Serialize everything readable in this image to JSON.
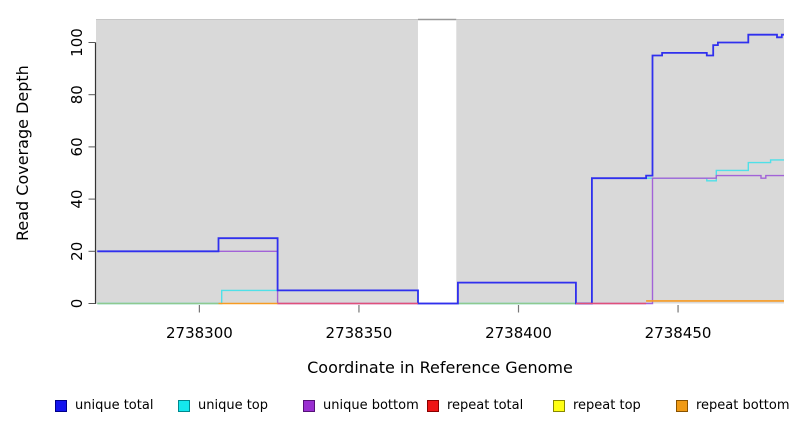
{
  "chart_data": {
    "type": "line",
    "title": "",
    "xlabel": "Coordinate in Reference Genome",
    "ylabel": "Read Coverage Depth",
    "x_ticks": [
      2738300,
      2738350,
      2738400,
      2738450
    ],
    "x_tick_labels": [
      "2738300",
      "2738350",
      "2738400",
      "2738450"
    ],
    "y_ticks": [
      0,
      20,
      40,
      60,
      80,
      100
    ],
    "y_tick_labels": [
      "0",
      "20",
      "40",
      "60",
      "80",
      "100"
    ],
    "xlim": [
      2738267.6,
      2738483.2
    ],
    "ylim": [
      0,
      109
    ],
    "grid": false,
    "plot_bg_color": "#d9d9d9",
    "masked_region": {
      "start": 2738368.5,
      "end": 2738380.5,
      "color": "#ffffff",
      "top_marker_color": "#999999"
    },
    "series": [
      {
        "name": "unique top",
        "line_color": "#4fe0e8",
        "width": 1.4,
        "segments": [
          {
            "points": [
              [
                2738268,
                0
              ],
              [
                2738307,
                5
              ],
              [
                2738368.5,
                0
              ],
              [
                2738423,
                48
              ],
              [
                2738459,
                47
              ],
              [
                2738462,
                51
              ],
              [
                2738472,
                54
              ],
              [
                2738479,
                55
              ]
            ],
            "end": 2738483.2
          }
        ]
      },
      {
        "name": "repeat top",
        "line_color": "#8fc98f",
        "width": 1.5,
        "segments": [
          {
            "points": [
              [
                2738268,
                0
              ]
            ],
            "end": 2738306
          },
          {
            "points": [
              [
                2738381,
                0
              ]
            ],
            "end": 2738418
          }
        ]
      },
      {
        "name": "unique bottom",
        "line_color": "#a263d8",
        "width": 1.4,
        "segments": [
          {
            "points": [
              [
                2738268,
                20
              ],
              [
                2738324.5,
                0
              ],
              [
                2738381,
                8
              ],
              [
                2738418,
                0
              ],
              [
                2738442,
                48
              ],
              [
                2738462,
                49
              ],
              [
                2738476,
                48
              ],
              [
                2738477.5,
                49
              ]
            ],
            "end": 2738483.2
          }
        ]
      },
      {
        "name": "unique total",
        "line_color": "#3030ee",
        "width": 1.8,
        "segments": [
          {
            "points": [
              [
                2738268,
                20
              ],
              [
                2738306,
                25
              ],
              [
                2738324.5,
                5
              ],
              [
                2738368.5,
                0
              ],
              [
                2738381,
                8
              ],
              [
                2738418,
                0
              ],
              [
                2738423,
                48
              ],
              [
                2738440,
                49
              ],
              [
                2738442,
                95
              ],
              [
                2738445,
                96
              ],
              [
                2738459,
                95
              ],
              [
                2738461,
                99
              ],
              [
                2738462.5,
                100
              ],
              [
                2738472,
                103
              ],
              [
                2738481,
                102
              ],
              [
                2738482.5,
                103
              ]
            ],
            "end": 2738483.2
          }
        ]
      },
      {
        "name": "repeat total",
        "line_color": "#e0507a",
        "width": 1.4,
        "segments": [
          {
            "points": [
              [
                2738324.5,
                0
              ]
            ],
            "end": 2738368.5
          },
          {
            "points": [
              [
                2738418,
                0
              ]
            ],
            "end": 2738440
          }
        ]
      },
      {
        "name": "repeat bottom",
        "line_color": "#f79b22",
        "width": 1.6,
        "segments": [
          {
            "points": [
              [
                2738306,
                0
              ]
            ],
            "end": 2738324.5
          },
          {
            "points": [
              [
                2738440,
                1
              ]
            ],
            "end": 2738483.2
          }
        ]
      }
    ],
    "legend": {
      "position": "bottom",
      "items": [
        {
          "label": "unique total",
          "fill": "#1414ee",
          "border": "#000088"
        },
        {
          "label": "unique top",
          "fill": "#14e8ee",
          "border": "#00888e"
        },
        {
          "label": "unique bottom",
          "fill": "#9a2fd1",
          "border": "#551177"
        },
        {
          "label": "repeat total",
          "fill": "#ee1414",
          "border": "#880000"
        },
        {
          "label": "repeat top",
          "fill": "#ffff14",
          "border": "#888800"
        },
        {
          "label": "repeat bottom",
          "fill": "#f09a14",
          "border": "#885200"
        }
      ]
    }
  }
}
